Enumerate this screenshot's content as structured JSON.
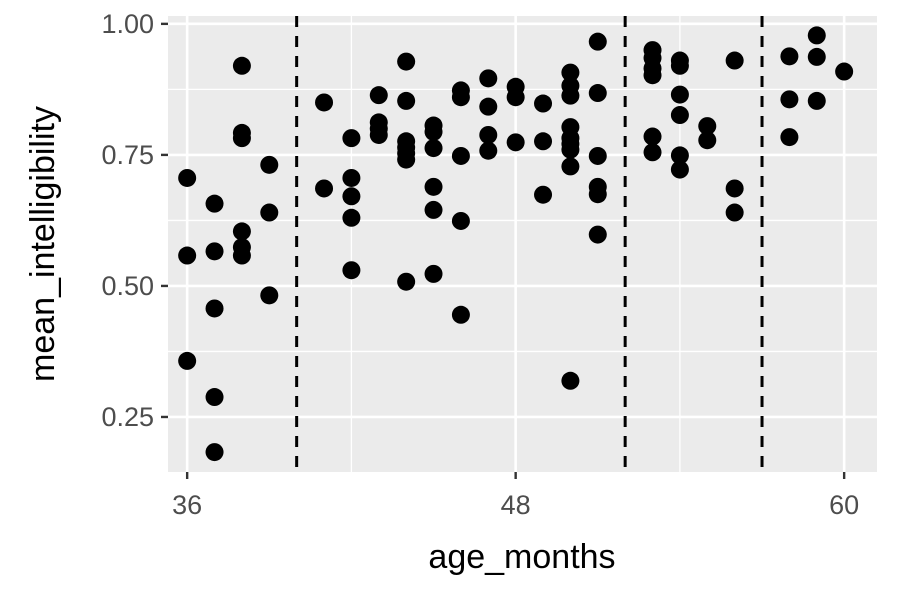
{
  "chart_data": {
    "type": "scatter",
    "xlabel": "age_months",
    "ylabel": "mean_intelligibility",
    "xlim": [
      35.3,
      61.2
    ],
    "ylim": [
      0.145,
      1.015
    ],
    "xticks": [
      36,
      48,
      60
    ],
    "xtick_labels": [
      "36",
      "48",
      "60"
    ],
    "xticks_minor": [
      42,
      54
    ],
    "yticks": [
      0.25,
      0.5,
      0.75,
      1.0
    ],
    "ytick_labels": [
      "0.25",
      "0.50",
      "0.75",
      "1.00"
    ],
    "yticks_minor": [
      0.375,
      0.625,
      0.875
    ],
    "vlines": [
      40,
      52,
      57
    ],
    "grid": true,
    "legend": "none",
    "colors": {
      "panel": "#ebebeb",
      "grid": "#ffffff",
      "point": "#000000",
      "vline": "#000000",
      "tick_mark": "#333333"
    },
    "points": [
      [
        36,
        0.706
      ],
      [
        36,
        0.558
      ],
      [
        36,
        0.357
      ],
      [
        37,
        0.657
      ],
      [
        37,
        0.566
      ],
      [
        37,
        0.457
      ],
      [
        37,
        0.288
      ],
      [
        37,
        0.183
      ],
      [
        38,
        0.92
      ],
      [
        38,
        0.792
      ],
      [
        38,
        0.782
      ],
      [
        38,
        0.604
      ],
      [
        38,
        0.574
      ],
      [
        38,
        0.558
      ],
      [
        39,
        0.731
      ],
      [
        39,
        0.64
      ],
      [
        39,
        0.482
      ],
      [
        41,
        0.85
      ],
      [
        41,
        0.686
      ],
      [
        42,
        0.782
      ],
      [
        42,
        0.706
      ],
      [
        42,
        0.671
      ],
      [
        42,
        0.63
      ],
      [
        42,
        0.53
      ],
      [
        43,
        0.864
      ],
      [
        43,
        0.812
      ],
      [
        43,
        0.8
      ],
      [
        43,
        0.788
      ],
      [
        44,
        0.928
      ],
      [
        44,
        0.853
      ],
      [
        44,
        0.776
      ],
      [
        44,
        0.764
      ],
      [
        44,
        0.753
      ],
      [
        44,
        0.741
      ],
      [
        44,
        0.508
      ],
      [
        45,
        0.806
      ],
      [
        45,
        0.794
      ],
      [
        45,
        0.763
      ],
      [
        45,
        0.689
      ],
      [
        45,
        0.645
      ],
      [
        45,
        0.523
      ],
      [
        46,
        0.873
      ],
      [
        46,
        0.86
      ],
      [
        46,
        0.748
      ],
      [
        46,
        0.624
      ],
      [
        46,
        0.445
      ],
      [
        47,
        0.896
      ],
      [
        47,
        0.842
      ],
      [
        47,
        0.788
      ],
      [
        47,
        0.758
      ],
      [
        48,
        0.88
      ],
      [
        48,
        0.86
      ],
      [
        48,
        0.774
      ],
      [
        49,
        0.848
      ],
      [
        49,
        0.776
      ],
      [
        49,
        0.674
      ],
      [
        50,
        0.907
      ],
      [
        50,
        0.882
      ],
      [
        50,
        0.863
      ],
      [
        50,
        0.803
      ],
      [
        50,
        0.782
      ],
      [
        50,
        0.771
      ],
      [
        50,
        0.76
      ],
      [
        50,
        0.728
      ],
      [
        50,
        0.319
      ],
      [
        51,
        0.966
      ],
      [
        51,
        0.868
      ],
      [
        51,
        0.748
      ],
      [
        51,
        0.689
      ],
      [
        51,
        0.675
      ],
      [
        51,
        0.598
      ],
      [
        53,
        0.95
      ],
      [
        53,
        0.935
      ],
      [
        53,
        0.915
      ],
      [
        53,
        0.902
      ],
      [
        53,
        0.785
      ],
      [
        53,
        0.755
      ],
      [
        54,
        0.93
      ],
      [
        54,
        0.92
      ],
      [
        54,
        0.865
      ],
      [
        54,
        0.826
      ],
      [
        54,
        0.749
      ],
      [
        54,
        0.722
      ],
      [
        55,
        0.805
      ],
      [
        55,
        0.778
      ],
      [
        56,
        0.93
      ],
      [
        56,
        0.686
      ],
      [
        56,
        0.64
      ],
      [
        58,
        0.938
      ],
      [
        58,
        0.856
      ],
      [
        58,
        0.784
      ],
      [
        59,
        0.978
      ],
      [
        59,
        0.937
      ],
      [
        59,
        0.853
      ],
      [
        60,
        0.909
      ]
    ]
  }
}
